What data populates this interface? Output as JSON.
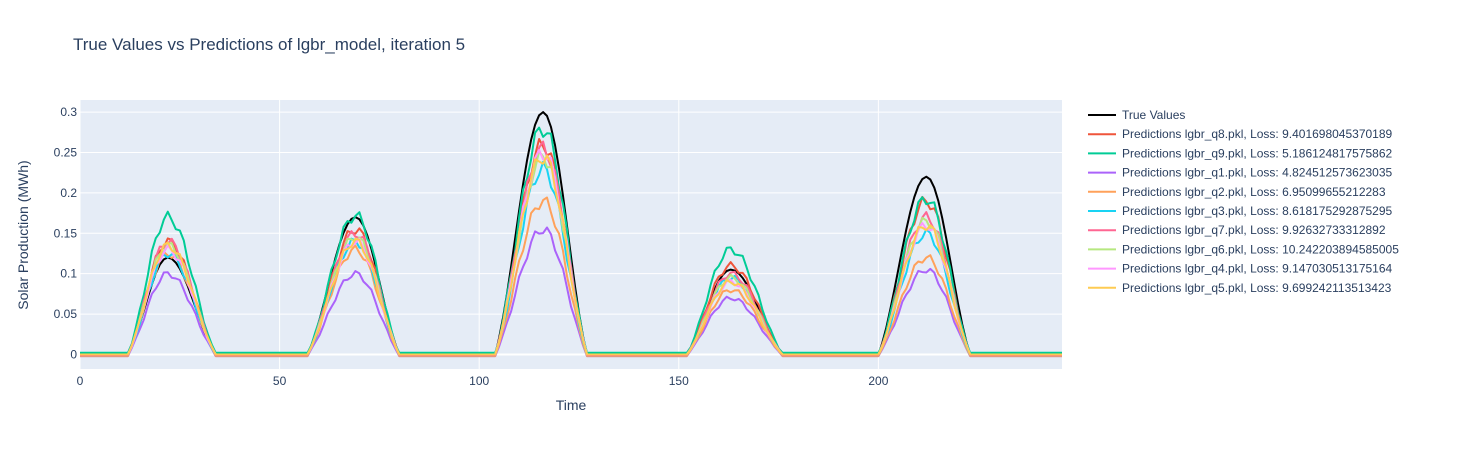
{
  "chart_data": {
    "type": "line",
    "title": "True Values vs Predictions of lgbr_model, iteration 5",
    "xlabel": "Time",
    "ylabel": "Solar Production (MWh)",
    "xlim": [
      0,
      246
    ],
    "ylim": [
      -0.018,
      0.315
    ],
    "xticks": [
      0,
      50,
      100,
      150,
      200
    ],
    "xtick_labels": [
      "0",
      "50",
      "100",
      "150",
      "200"
    ],
    "yticks": [
      0,
      0.05,
      0.1,
      0.15,
      0.2,
      0.25,
      0.3
    ],
    "ytick_labels": [
      "0",
      "0.05",
      "0.1",
      "0.15",
      "0.2",
      "0.25",
      "0.3"
    ],
    "grid": true,
    "legend_position": "right",
    "plot_bg": "#e5ecf6",
    "days": [
      {
        "start": 12,
        "peak": 22,
        "end": 34
      },
      {
        "start": 57,
        "peak": 69,
        "end": 80
      },
      {
        "start": 104,
        "peak": 116,
        "end": 127
      },
      {
        "start": 152,
        "peak": 163,
        "end": 176
      },
      {
        "start": 200,
        "peak": 212,
        "end": 223
      }
    ],
    "series": [
      {
        "name": "True Values",
        "color": "#000000",
        "peaks": [
          0.12,
          0.17,
          0.3,
          0.105,
          0.22
        ],
        "baseline": -0.001
      },
      {
        "name": "Predictions lgbr_q8.pkl, Loss: 9.401698045370189",
        "color": "#EF553B",
        "peaks": [
          0.14,
          0.155,
          0.26,
          0.11,
          0.19
        ],
        "baseline": -0.001
      },
      {
        "name": "Predictions lgbr_q9.pkl, Loss: 5.186124817575862",
        "color": "#00CC96",
        "peaks": [
          0.17,
          0.172,
          0.28,
          0.13,
          0.193
        ],
        "baseline": 0.002
      },
      {
        "name": "Predictions lgbr_q1.pkl, Loss: 4.824512573623035",
        "color": "#AB63FA",
        "peaks": [
          0.1,
          0.1,
          0.155,
          0.07,
          0.105
        ],
        "baseline": -0.002
      },
      {
        "name": "Predictions lgbr_q2.pkl, Loss: 6.95099655212283",
        "color": "#FFA15A",
        "peaks": [
          0.125,
          0.13,
          0.19,
          0.08,
          0.12
        ],
        "baseline": -0.002
      },
      {
        "name": "Predictions lgbr_q3.pkl, Loss: 8.618175292875295",
        "color": "#19D3F3",
        "peaks": [
          0.125,
          0.14,
          0.23,
          0.095,
          0.15
        ],
        "baseline": -0.001
      },
      {
        "name": "Predictions lgbr_q7.pkl, Loss: 9.92632733312892",
        "color": "#FF6692",
        "peaks": [
          0.14,
          0.15,
          0.255,
          0.1,
          0.17
        ],
        "baseline": -0.001
      },
      {
        "name": "Predictions lgbr_q6.pkl, Loss: 10.242203894585005",
        "color": "#B6E880",
        "peaks": [
          0.135,
          0.145,
          0.245,
          0.095,
          0.165
        ],
        "baseline": 0.0
      },
      {
        "name": "Predictions lgbr_q4.pkl, Loss: 9.147030513175164",
        "color": "#FF97FF",
        "peaks": [
          0.13,
          0.14,
          0.25,
          0.09,
          0.16
        ],
        "baseline": 0.0
      },
      {
        "name": "Predictions lgbr_q5.pkl, Loss: 9.699242113513423",
        "color": "#FECB52",
        "peaks": [
          0.135,
          0.14,
          0.245,
          0.09,
          0.16
        ],
        "baseline": 0.0
      }
    ]
  }
}
